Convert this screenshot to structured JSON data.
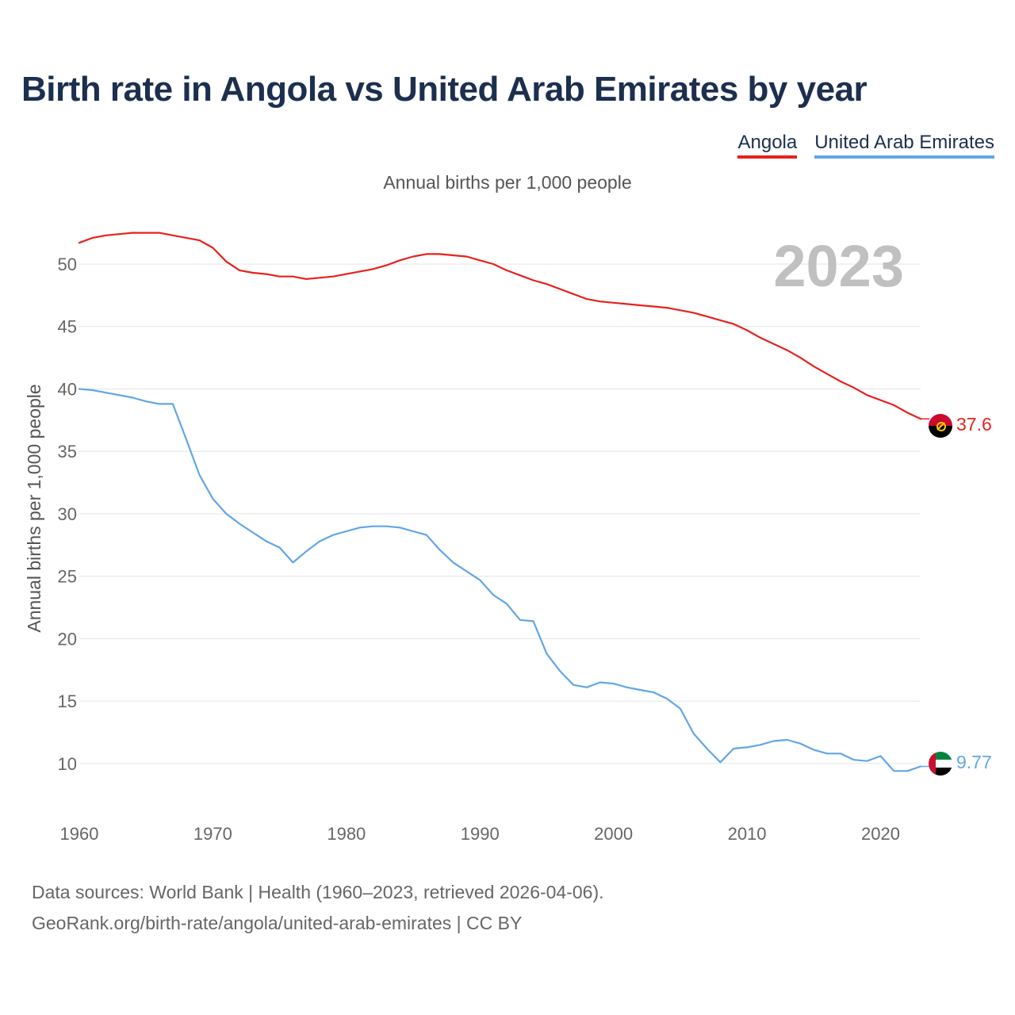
{
  "title": "Birth rate in Angola vs United Arab Emirates by year",
  "legend": {
    "angola": "Angola",
    "uae": "United Arab Emirates"
  },
  "subtitle": "Annual births per 1,000 people",
  "footer": {
    "line1": "Data sources: World Bank | Health (1960–2023, retrieved 2026-04-06).",
    "line2": "GeoRank.org/birth-rate/angola/united-arab-emirates | CC BY"
  },
  "colors": {
    "angola": "#e8211d",
    "uae": "#62a6e6",
    "grid": "#e6e6e6",
    "year": "#c0c0c0",
    "axis_text": "#666666"
  },
  "chart_data": {
    "type": "line",
    "title": "Birth rate in Angola vs United Arab Emirates by year",
    "xlabel": "",
    "ylabel": "Annual births per 1,000 people",
    "year_label": "2023",
    "xlim": [
      1960,
      2023
    ],
    "ylim": [
      6.5,
      54
    ],
    "x_ticks": [
      1960,
      1970,
      1980,
      1990,
      2000,
      2010,
      2020
    ],
    "y_ticks": [
      10,
      15,
      20,
      25,
      30,
      35,
      40,
      45,
      50
    ],
    "grid": true,
    "x": [
      1960,
      1961,
      1962,
      1963,
      1964,
      1965,
      1966,
      1967,
      1968,
      1969,
      1970,
      1971,
      1972,
      1973,
      1974,
      1975,
      1976,
      1977,
      1978,
      1979,
      1980,
      1981,
      1982,
      1983,
      1984,
      1985,
      1986,
      1987,
      1988,
      1989,
      1990,
      1991,
      1992,
      1993,
      1994,
      1995,
      1996,
      1997,
      1998,
      1999,
      2000,
      2001,
      2002,
      2003,
      2004,
      2005,
      2006,
      2007,
      2008,
      2009,
      2010,
      2011,
      2012,
      2013,
      2014,
      2015,
      2016,
      2017,
      2018,
      2019,
      2020,
      2021,
      2022,
      2023
    ],
    "series": [
      {
        "name": "Angola",
        "end_label": "37.6",
        "icon": "angola-flag-icon",
        "values": [
          51.7,
          52.1,
          52.3,
          52.4,
          52.5,
          52.5,
          52.5,
          52.3,
          52.1,
          51.9,
          51.3,
          50.2,
          49.5,
          49.3,
          49.2,
          49.0,
          49.0,
          48.8,
          48.9,
          49.0,
          49.2,
          49.4,
          49.6,
          49.9,
          50.3,
          50.6,
          50.8,
          50.8,
          50.7,
          50.6,
          50.3,
          50.0,
          49.5,
          49.1,
          48.7,
          48.4,
          48.0,
          47.6,
          47.2,
          47.0,
          46.9,
          46.8,
          46.7,
          46.6,
          46.5,
          46.3,
          46.1,
          45.8,
          45.5,
          45.2,
          44.7,
          44.1,
          43.6,
          43.1,
          42.5,
          41.8,
          41.2,
          40.6,
          40.1,
          39.5,
          39.1,
          38.7,
          38.1,
          37.6
        ]
      },
      {
        "name": "United Arab Emirates",
        "end_label": "9.77",
        "icon": "uae-flag-icon",
        "values": [
          40.0,
          39.9,
          39.7,
          39.5,
          39.3,
          39.0,
          38.8,
          38.8,
          36.0,
          33.1,
          31.2,
          30.0,
          29.2,
          28.5,
          27.8,
          27.3,
          26.1,
          27.0,
          27.8,
          28.3,
          28.6,
          28.9,
          29.0,
          29.0,
          28.9,
          28.6,
          28.3,
          27.1,
          26.1,
          25.4,
          24.7,
          23.5,
          22.8,
          21.5,
          21.4,
          18.8,
          17.4,
          16.3,
          16.1,
          16.5,
          16.4,
          16.1,
          15.9,
          15.7,
          15.2,
          14.4,
          12.4,
          11.2,
          10.1,
          11.2,
          11.3,
          11.5,
          11.8,
          11.9,
          11.6,
          11.1,
          10.8,
          10.8,
          10.3,
          10.2,
          10.6,
          9.4,
          9.4,
          9.77
        ]
      }
    ]
  }
}
